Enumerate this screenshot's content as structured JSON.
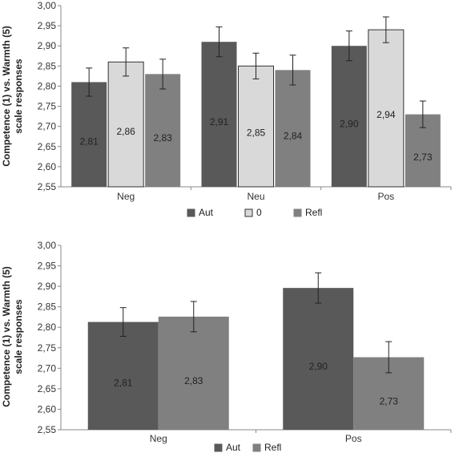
{
  "chart_data": [
    {
      "type": "bar",
      "ylabel_line1": "Competence (1) vs. Warmth (5)",
      "ylabel_line2": "scale responses",
      "categories": [
        "Neg",
        "Neu",
        "Pos"
      ],
      "ylim": [
        2.55,
        3.0
      ],
      "yticks": [
        "2,55",
        "2,60",
        "2,65",
        "2,70",
        "2,75",
        "2,80",
        "2,85",
        "2,90",
        "2,95",
        "3,00"
      ],
      "grid": false,
      "legend_position": "bottom",
      "series": [
        {
          "name": "Aut",
          "color": "#595959",
          "values": [
            2.81,
            2.91,
            2.9
          ],
          "labels": [
            "2,81",
            "2,91",
            "2,90"
          ],
          "err": [
            0.035,
            0.037,
            0.037
          ]
        },
        {
          "name": "0",
          "color": "#d9d9d9",
          "values": [
            2.86,
            2.85,
            2.94
          ],
          "labels": [
            "2,86",
            "2,85",
            "2,94"
          ],
          "err": [
            0.035,
            0.032,
            0.032
          ]
        },
        {
          "name": "Refl",
          "color": "#808080",
          "values": [
            2.83,
            2.84,
            2.73
          ],
          "labels": [
            "2,83",
            "2,84",
            "2,73"
          ],
          "err": [
            0.037,
            0.037,
            0.033
          ]
        }
      ]
    },
    {
      "type": "bar",
      "ylabel_line1": "Competence (1) vs. Warmth (5)",
      "ylabel_line2": "scale responses",
      "categories": [
        "Neg",
        "Pos"
      ],
      "ylim": [
        2.55,
        3.0
      ],
      "yticks": [
        "2,55",
        "2,60",
        "2,65",
        "2,70",
        "2,75",
        "2,80",
        "2,85",
        "2,90",
        "2,95",
        "3,00"
      ],
      "grid": false,
      "legend_position": "bottom",
      "series": [
        {
          "name": "Aut",
          "color": "#595959",
          "values": [
            2.813,
            2.896
          ],
          "labels": [
            "2,81",
            "2,90"
          ],
          "err": [
            0.035,
            0.037
          ]
        },
        {
          "name": "Refl",
          "color": "#808080",
          "values": [
            2.826,
            2.727
          ],
          "labels": [
            "2,83",
            "2,73"
          ],
          "err": [
            0.037,
            0.038
          ]
        }
      ]
    }
  ]
}
